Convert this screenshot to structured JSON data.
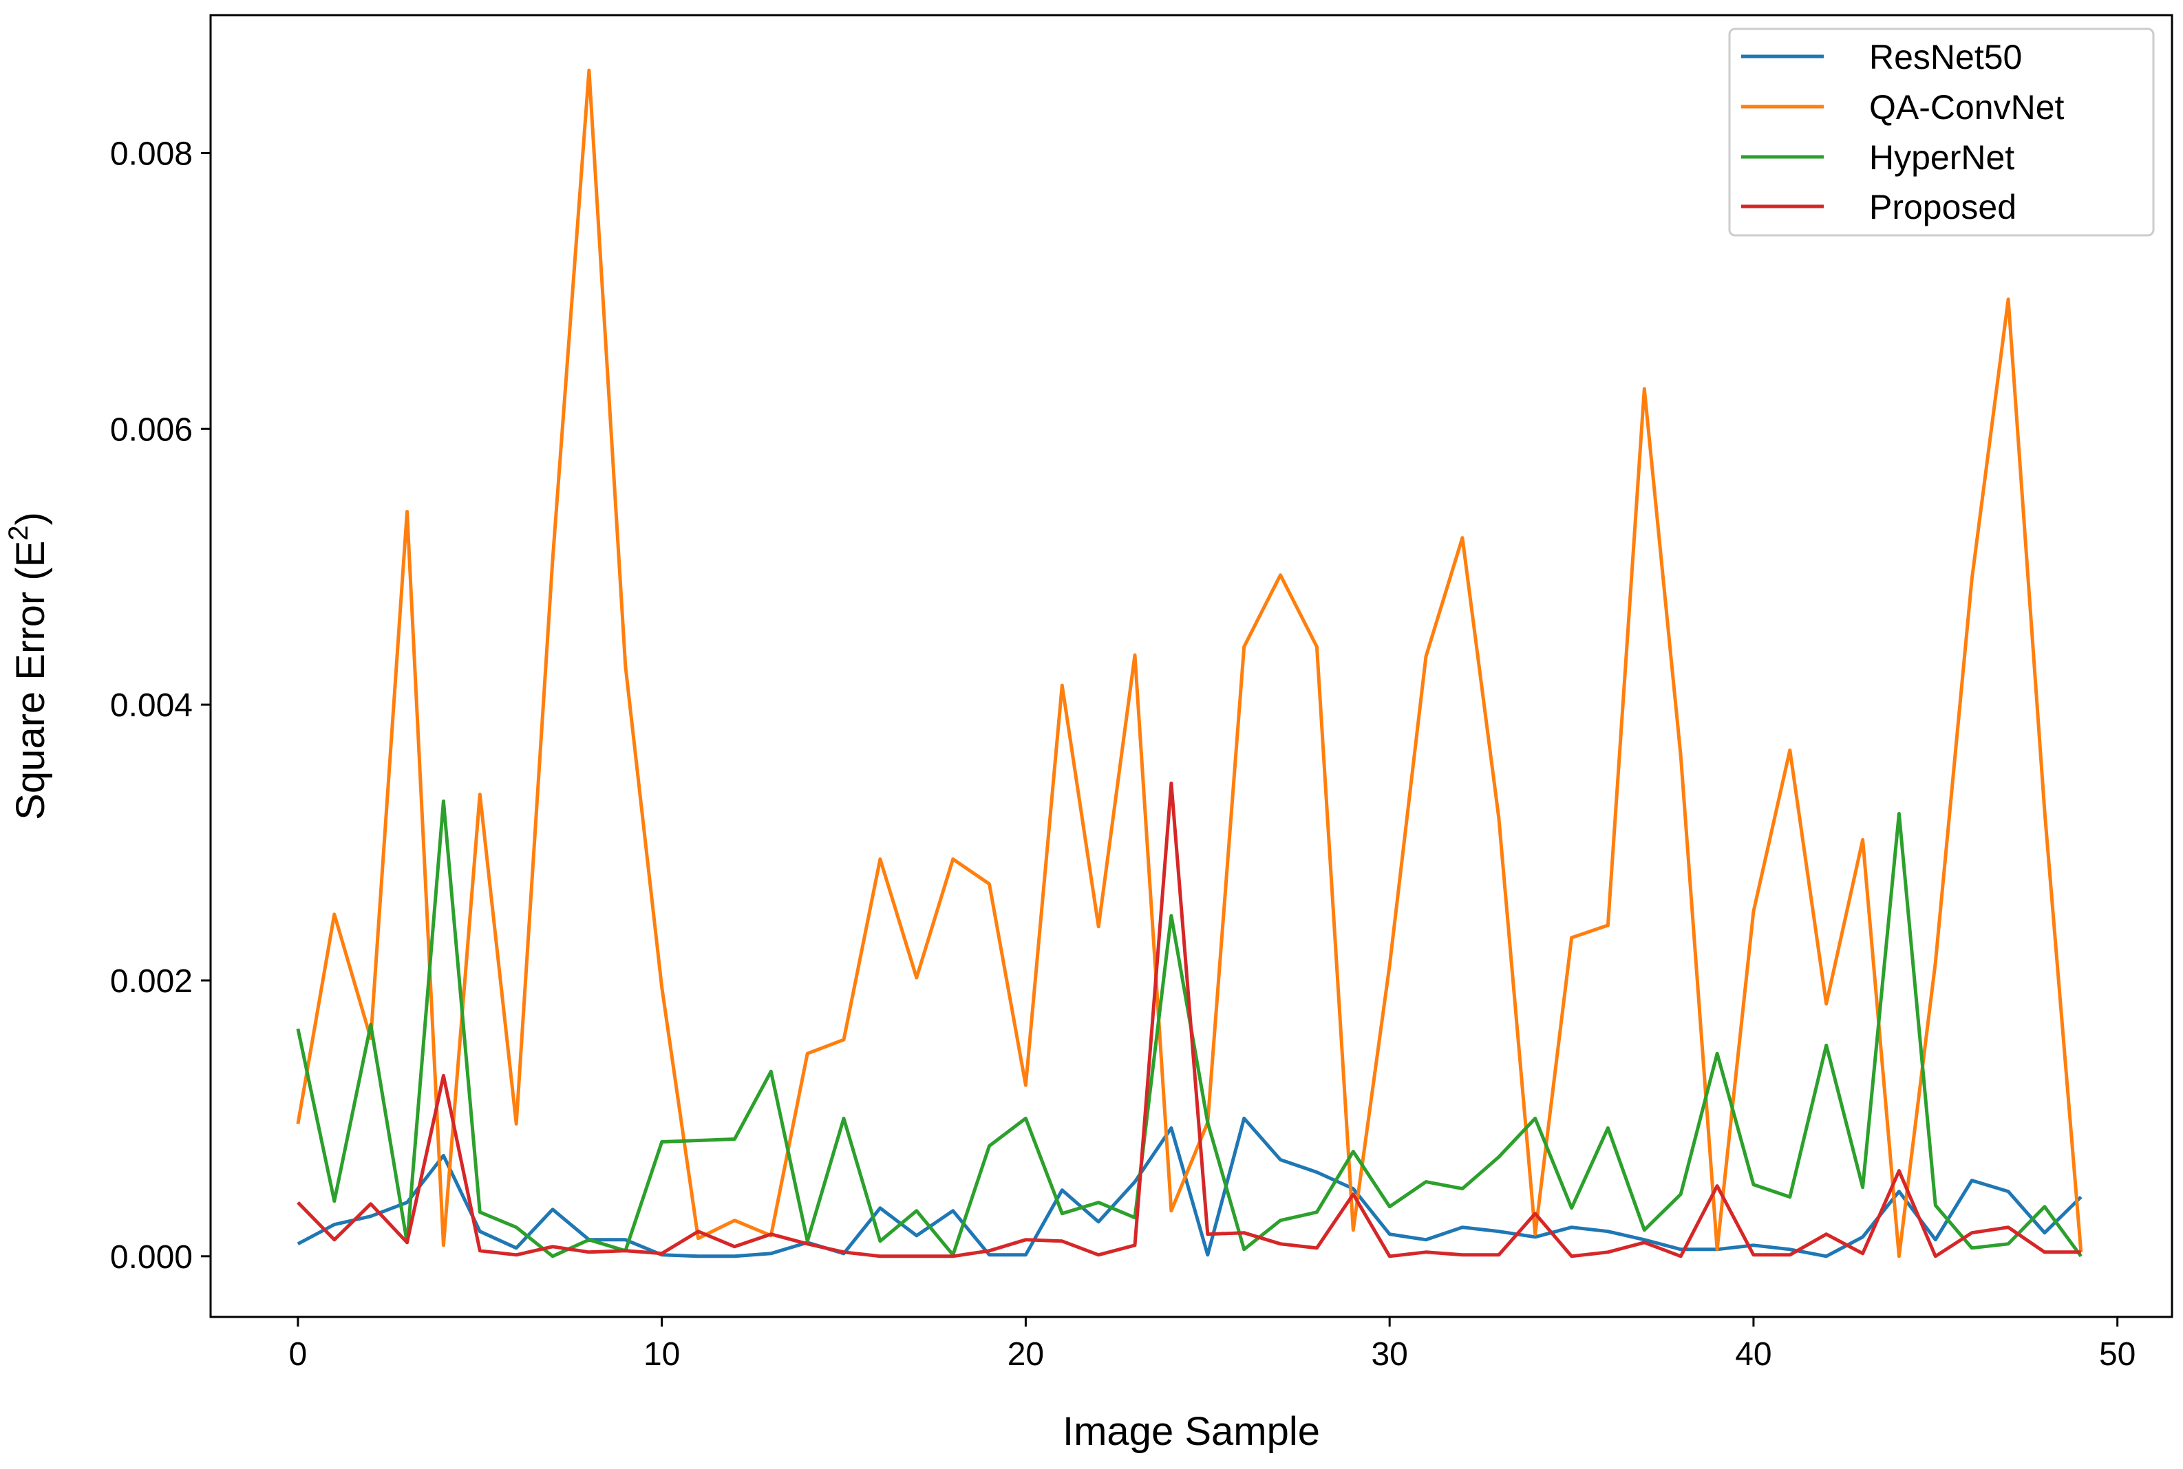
{
  "chart_data": {
    "type": "line",
    "title": "",
    "xlabel": "Image Sample",
    "ylabel": "Square Error (E",
    "ylabel_superscript": "2",
    "ylabel_suffix": ")",
    "xlim": [
      -2.4,
      51.5
    ],
    "ylim": [
      -0.00044,
      0.009
    ],
    "xticks": [
      0,
      10,
      20,
      30,
      40,
      50
    ],
    "xtick_labels": [
      "0",
      "10",
      "20",
      "30",
      "40",
      "50"
    ],
    "yticks": [
      0.0,
      0.002,
      0.004,
      0.006,
      0.008
    ],
    "ytick_labels": [
      "0.000",
      "0.002",
      "0.004",
      "0.006",
      "0.008"
    ],
    "grid": false,
    "legend_position": "top-right",
    "x": [
      0,
      1,
      2,
      3,
      4,
      5,
      6,
      7,
      8,
      9,
      10,
      11,
      12,
      13,
      14,
      15,
      16,
      17,
      18,
      19,
      20,
      21,
      22,
      23,
      24,
      25,
      26,
      27,
      28,
      29,
      30,
      31,
      32,
      33,
      34,
      35,
      36,
      37,
      38,
      39,
      40,
      41,
      42,
      43,
      44,
      45,
      46,
      47,
      48,
      49
    ],
    "series": [
      {
        "name": "ResNet50",
        "color": "#1f77b4",
        "values": [
          9e-05,
          0.00023,
          0.00029,
          0.00039,
          0.00073,
          0.00018,
          6e-05,
          0.00034,
          0.00012,
          0.00012,
          1e-05,
          0.0,
          0.0,
          2e-05,
          0.0001,
          2e-05,
          0.00035,
          0.00015,
          0.00033,
          1e-05,
          1e-05,
          0.00048,
          0.00025,
          0.00054,
          0.00093,
          1e-05,
          0.001,
          0.0007,
          0.00061,
          0.00049,
          0.00016,
          0.00012,
          0.00021,
          0.00018,
          0.00014,
          0.00021,
          0.00018,
          0.00012,
          5e-05,
          5e-05,
          8e-05,
          5e-05,
          0.0,
          0.00014,
          0.00047,
          0.00012,
          0.00055,
          0.00047,
          0.00017,
          0.00043
        ]
      },
      {
        "name": "QA-ConvNet",
        "color": "#ff7f0e",
        "values": [
          0.00096,
          0.00248,
          0.00158,
          0.0054,
          8e-05,
          0.00335,
          0.00096,
          0.00505,
          0.0086,
          0.00428,
          0.00195,
          0.00013,
          0.00026,
          0.00015,
          0.00147,
          0.00157,
          0.00288,
          0.00202,
          0.00288,
          0.0027,
          0.00124,
          0.00414,
          0.00239,
          0.00436,
          0.00033,
          0.00097,
          0.00442,
          0.00494,
          0.00442,
          0.00019,
          0.00211,
          0.00435,
          0.00521,
          0.00318,
          0.00016,
          0.00231,
          0.0024,
          0.00629,
          0.00363,
          5e-05,
          0.0025,
          0.00367,
          0.00183,
          0.00302,
          0.0,
          0.00213,
          0.00491,
          0.00694,
          0.00323,
          3e-05
        ]
      },
      {
        "name": "HyperNet",
        "color": "#2ca02c",
        "values": [
          0.00165,
          0.0004,
          0.00168,
          0.0001,
          0.0033,
          0.00032,
          0.00021,
          0.0,
          0.00012,
          4e-05,
          0.00083,
          0.00084,
          0.00085,
          0.00134,
          0.00011,
          0.001,
          0.00011,
          0.00033,
          1e-05,
          0.0008,
          0.001,
          0.00031,
          0.00039,
          0.00028,
          0.00247,
          0.00097,
          5e-05,
          0.00026,
          0.00032,
          0.00076,
          0.00036,
          0.00054,
          0.00049,
          0.00072,
          0.001,
          0.00035,
          0.00093,
          0.00019,
          0.00045,
          0.00147,
          0.00052,
          0.00043,
          0.00153,
          0.0005,
          0.00321,
          0.00037,
          6e-05,
          9e-05,
          0.00036,
          0.0
        ]
      },
      {
        "name": "Proposed",
        "color": "#d62728",
        "values": [
          0.00039,
          0.00012,
          0.00038,
          0.0001,
          0.00131,
          4e-05,
          1e-05,
          7e-05,
          3e-05,
          4e-05,
          2e-05,
          0.00018,
          7e-05,
          0.00016,
          9e-05,
          3e-05,
          0.0,
          0.0,
          0.0,
          4e-05,
          0.00012,
          0.00011,
          1e-05,
          8e-05,
          0.00343,
          0.00016,
          0.00017,
          9e-05,
          6e-05,
          0.00045,
          0.0,
          3e-05,
          1e-05,
          1e-05,
          0.00031,
          0.0,
          3e-05,
          0.0001,
          0.0,
          0.00051,
          1e-05,
          1e-05,
          0.00016,
          2e-05,
          0.00062,
          0.0,
          0.00017,
          0.00021,
          3e-05,
          3e-05
        ]
      }
    ]
  }
}
